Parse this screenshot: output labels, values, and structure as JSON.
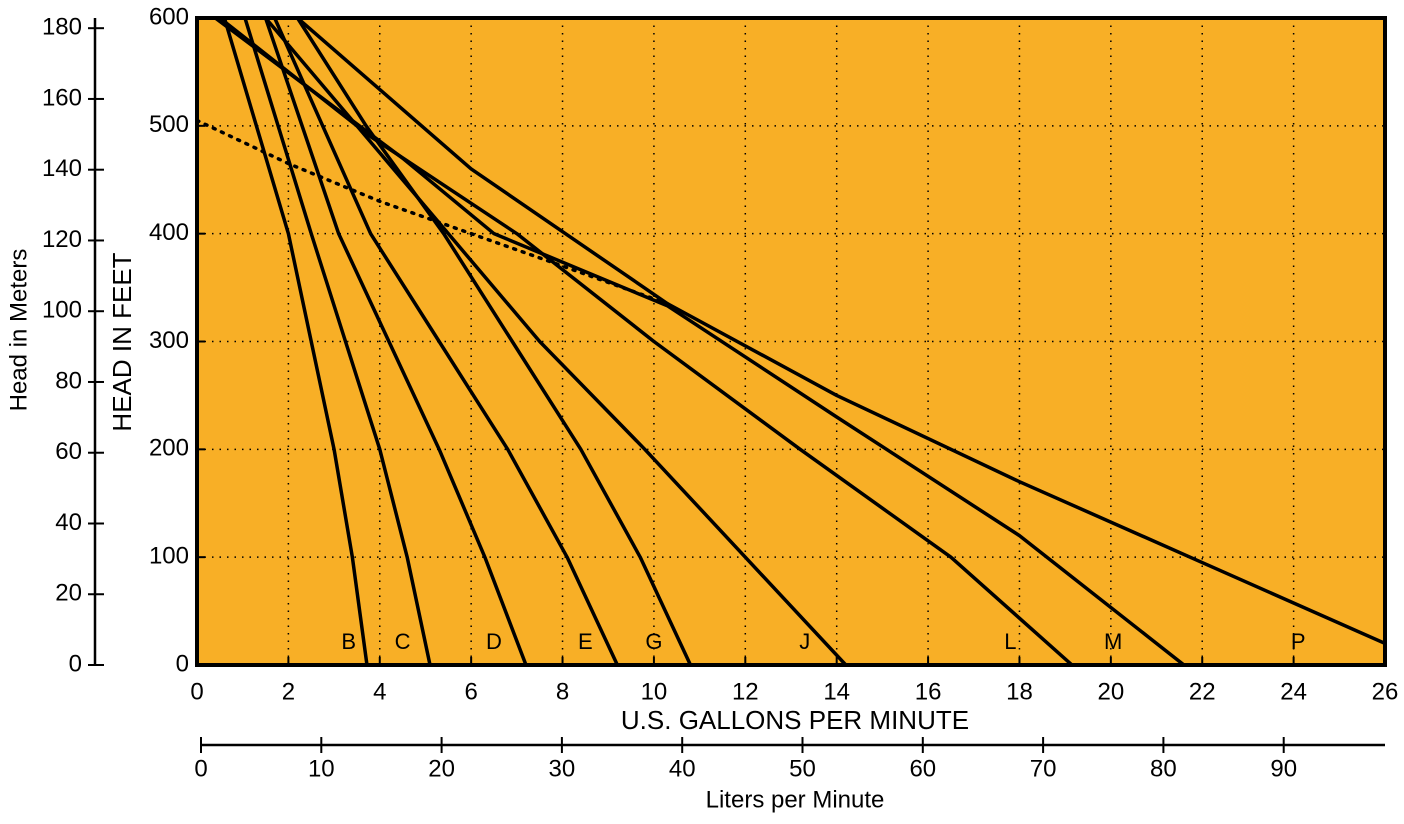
{
  "chart_data": {
    "type": "line",
    "xlabel": "U.S. GALLONS PER MINUTE",
    "ylabel": "HEAD IN FEET",
    "y2label": "Head in Meters",
    "x2label": "Liters per Minute",
    "xlim": [
      0,
      26
    ],
    "xticks": [
      0,
      2,
      4,
      6,
      8,
      10,
      12,
      14,
      16,
      18,
      20,
      22,
      24,
      26
    ],
    "ylim": [
      0,
      600
    ],
    "yticks": [
      0,
      100,
      200,
      300,
      400,
      500,
      600
    ],
    "y2lim": [
      0,
      182.88
    ],
    "y2ticks": [
      0,
      20,
      40,
      60,
      80,
      100,
      120,
      140,
      160,
      180
    ],
    "x2lim": [
      0,
      98.42
    ],
    "x2ticks": [
      0,
      10,
      20,
      30,
      40,
      50,
      60,
      70,
      80,
      90
    ],
    "grid": true,
    "background": "#f8af26",
    "series": [
      {
        "name": "B",
        "color": "#000000",
        "x": [
          0.6,
          2.0,
          2.5,
          3.0,
          3.4,
          3.72
        ],
        "values": [
          600,
          400,
          300,
          200,
          100,
          0
        ]
      },
      {
        "name": "C",
        "color": "#000000",
        "x": [
          1.05,
          2.5,
          3.25,
          4.0,
          4.6,
          5.1
        ],
        "values": [
          600,
          400,
          300,
          200,
          100,
          0
        ]
      },
      {
        "name": "D",
        "color": "#000000",
        "x": [
          1.5,
          3.1,
          4.2,
          5.3,
          6.3,
          7.2
        ],
        "values": [
          600,
          400,
          300,
          200,
          100,
          0
        ]
      },
      {
        "name": "E",
        "color": "#000000",
        "x": [
          1.7,
          3.8,
          5.3,
          6.8,
          8.1,
          9.2
        ],
        "values": [
          600,
          400,
          300,
          200,
          100,
          0
        ]
      },
      {
        "name": "G",
        "color": "#000000",
        "x": [
          2.2,
          3.7,
          5.4,
          6.9,
          8.4,
          9.7,
          10.8
        ],
        "values": [
          600,
          500,
          400,
          300,
          200,
          100,
          0
        ]
      },
      {
        "name": "J",
        "color": "#000000",
        "x": [
          1.5,
          3.5,
          5.5,
          7.5,
          9.8,
          12.0,
          14.2
        ],
        "values": [
          600,
          500,
          400,
          300,
          200,
          100,
          0
        ]
      },
      {
        "name": "L",
        "color": "#000000",
        "x": [
          0.5,
          3.8,
          7.0,
          10.0,
          13.2,
          16.5,
          19.15
        ],
        "values": [
          600,
          490,
          400,
          300,
          200,
          100,
          0
        ]
      },
      {
        "name": "M",
        "color": "#000000",
        "x": [
          0.4,
          4.5,
          6.5,
          10.3,
          14.0,
          18.0,
          21.6
        ],
        "values": [
          600,
          470,
          400,
          333,
          230,
          120,
          0
        ]
      },
      {
        "name": "P",
        "color": "#000000",
        "x": [
          2.2,
          6.0,
          10.3,
          14.0,
          18.0,
          22.0,
          26.0
        ],
        "values": [
          600,
          460,
          335,
          250,
          170,
          95,
          20
        ]
      },
      {
        "color": "#000000",
        "style": "dotted",
        "x": [
          0,
          2,
          4,
          6,
          8,
          10.3
        ],
        "values": [
          505,
          465,
          430,
          400,
          370,
          335
        ]
      }
    ]
  }
}
